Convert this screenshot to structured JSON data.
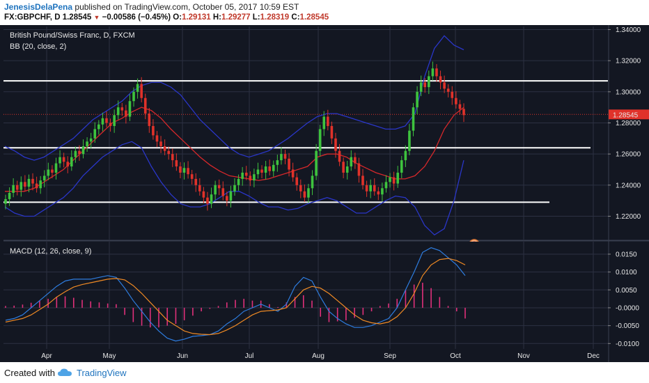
{
  "header": {
    "author": "JenesisDelaPena",
    "published_text": "published on TradingView.com, October 05, 2017 10:59 EST",
    "symbol": "FX:GBPCHF, D",
    "last": "1.28545",
    "change": "−0.00586 (−0.45%)",
    "o_label": "O:",
    "o_value": "1.29131",
    "h_label": "H:",
    "h_value": "1.29277",
    "l_label": "L:",
    "l_value": "1.28319",
    "c_label": "C:",
    "c_value": "1.28545",
    "colors": {
      "author": "#1e73be",
      "negative": "#c0392b"
    }
  },
  "footer": {
    "created_with": "Created with",
    "brand": "TradingView"
  },
  "chart_data": [
    {
      "type": "line",
      "title": "British Pound/Swiss Franc, D, FXCM",
      "subtitle": "BB (20, close, 2)",
      "ylim": [
        1.205,
        1.342
      ],
      "yticks": [
        "1.34000",
        "1.32000",
        "1.30000",
        "1.28000",
        "1.26000",
        "1.24000",
        "1.22000"
      ],
      "ytick_values": [
        1.34,
        1.32,
        1.3,
        1.28,
        1.26,
        1.24,
        1.22
      ],
      "last_price_label": "1.28545",
      "last_price": 1.28545,
      "xticks": [
        "Apr",
        "May",
        "Jun",
        "Jul",
        "Aug",
        "Sep",
        "Oct",
        "Nov",
        "Dec"
      ],
      "candles_close": [
        1.231,
        1.235,
        1.24,
        1.237,
        1.242,
        1.239,
        1.244,
        1.241,
        1.238,
        1.243,
        1.246,
        1.25,
        1.248,
        1.254,
        1.258,
        1.255,
        1.252,
        1.258,
        1.262,
        1.26,
        1.265,
        1.268,
        1.27,
        1.276,
        1.279,
        1.283,
        1.28,
        1.278,
        1.285,
        1.29,
        1.288,
        1.284,
        1.294,
        1.3,
        1.305,
        1.296,
        1.286,
        1.278,
        1.272,
        1.268,
        1.265,
        1.262,
        1.26,
        1.256,
        1.252,
        1.248,
        1.251,
        1.247,
        1.244,
        1.24,
        1.236,
        1.232,
        1.228,
        1.234,
        1.24,
        1.238,
        1.233,
        1.23,
        1.236,
        1.24,
        1.244,
        1.248,
        1.246,
        1.243,
        1.247,
        1.25,
        1.248,
        1.252,
        1.249,
        1.253,
        1.256,
        1.26,
        1.257,
        1.25,
        1.245,
        1.24,
        1.236,
        1.232,
        1.238,
        1.246,
        1.262,
        1.276,
        1.284,
        1.278,
        1.27,
        1.262,
        1.255,
        1.248,
        1.252,
        1.258,
        1.254,
        1.246,
        1.24,
        1.236,
        1.24,
        1.236,
        1.234,
        1.238,
        1.242,
        1.245,
        1.241,
        1.248,
        1.256,
        1.262,
        1.275,
        1.29,
        1.3,
        1.306,
        1.303,
        1.31,
        1.315,
        1.31,
        1.306,
        1.302,
        1.3,
        1.296,
        1.292,
        1.289,
        1.285
      ],
      "bb_upper": [
        1.265,
        1.262,
        1.258,
        1.256,
        1.258,
        1.262,
        1.266,
        1.27,
        1.276,
        1.282,
        1.286,
        1.29,
        1.294,
        1.3,
        1.304,
        1.306,
        1.306,
        1.303,
        1.298,
        1.29,
        1.282,
        1.276,
        1.27,
        1.264,
        1.26,
        1.258,
        1.26,
        1.262,
        1.266,
        1.27,
        1.275,
        1.28,
        1.284,
        1.286,
        1.286,
        1.284,
        1.282,
        1.28,
        1.278,
        1.276,
        1.276,
        1.278,
        1.286,
        1.31,
        1.328,
        1.336,
        1.33,
        1.327
      ],
      "bb_mid": [
        1.236,
        1.236,
        1.236,
        1.238,
        1.242,
        1.246,
        1.25,
        1.256,
        1.262,
        1.268,
        1.274,
        1.28,
        1.283,
        1.287,
        1.29,
        1.288,
        1.283,
        1.276,
        1.27,
        1.264,
        1.258,
        1.253,
        1.249,
        1.246,
        1.245,
        1.244,
        1.243,
        1.244,
        1.246,
        1.248,
        1.25,
        1.252,
        1.258,
        1.26,
        1.26,
        1.258,
        1.254,
        1.251,
        1.248,
        1.246,
        1.244,
        1.244,
        1.246,
        1.252,
        1.262,
        1.276,
        1.285,
        1.29
      ],
      "bb_lower": [
        1.226,
        1.222,
        1.22,
        1.22,
        1.224,
        1.228,
        1.232,
        1.238,
        1.246,
        1.252,
        1.258,
        1.262,
        1.266,
        1.268,
        1.264,
        1.252,
        1.242,
        1.234,
        1.228,
        1.226,
        1.226,
        1.228,
        1.232,
        1.236,
        1.236,
        1.233,
        1.229,
        1.226,
        1.226,
        1.224,
        1.225,
        1.228,
        1.23,
        1.232,
        1.23,
        1.226,
        1.222,
        1.222,
        1.226,
        1.23,
        1.233,
        1.232,
        1.226,
        1.214,
        1.208,
        1.212,
        1.23,
        1.256
      ],
      "hlines": [
        1.307,
        1.264,
        1.229
      ]
    },
    {
      "type": "line",
      "title": "MACD (12, 26, close, 9)",
      "ylim": [
        -0.0115,
        0.0185
      ],
      "yticks": [
        "0.0150",
        "0.0100",
        "0.0050",
        "-0.0000",
        "-0.0050",
        "-0.0100"
      ],
      "ytick_values": [
        0.015,
        0.01,
        0.005,
        0.0,
        -0.005,
        -0.01
      ],
      "macd": [
        -0.0035,
        -0.003,
        -0.002,
        0.0,
        0.002,
        0.004,
        0.006,
        0.0075,
        0.008,
        0.008,
        0.008,
        0.0085,
        0.009,
        0.0085,
        0.0055,
        0.002,
        -0.001,
        -0.004,
        -0.0065,
        -0.0085,
        -0.0093,
        -0.0088,
        -0.008,
        -0.0078,
        -0.0075,
        -0.0065,
        -0.0045,
        -0.003,
        -0.001,
        0.0,
        0.001,
        0.0,
        -0.001,
        0.001,
        0.006,
        0.0085,
        0.0075,
        0.003,
        -0.001,
        -0.003,
        -0.0045,
        -0.0055,
        -0.0055,
        -0.005,
        -0.004,
        -0.003,
        0.0,
        0.005,
        0.01,
        0.0155,
        0.0168,
        0.016,
        0.014,
        0.012,
        0.009
      ],
      "signal": [
        -0.004,
        -0.0035,
        -0.003,
        -0.002,
        -0.0005,
        0.001,
        0.003,
        0.0045,
        0.0058,
        0.0065,
        0.007,
        0.0075,
        0.008,
        0.0082,
        0.0078,
        0.0062,
        0.004,
        0.0015,
        -0.001,
        -0.0035,
        -0.005,
        -0.0065,
        -0.0072,
        -0.0074,
        -0.0075,
        -0.0072,
        -0.0062,
        -0.005,
        -0.0035,
        -0.002,
        -0.001,
        -0.0008,
        -0.0006,
        0.0,
        0.0025,
        0.005,
        0.006,
        0.0055,
        0.004,
        0.002,
        0.0,
        -0.002,
        -0.0035,
        -0.0042,
        -0.0045,
        -0.004,
        -0.0025,
        0.0,
        0.004,
        0.009,
        0.012,
        0.0135,
        0.0138,
        0.0132,
        0.012
      ],
      "histogram": [
        0.0005,
        0.0006,
        0.0009,
        0.0014,
        0.002,
        0.0025,
        0.003,
        0.0032,
        0.0028,
        0.0022,
        0.0018,
        0.0015,
        0.0012,
        0.001,
        -0.002,
        -0.004,
        -0.005,
        -0.0055,
        -0.0055,
        -0.005,
        -0.0045,
        -0.0035,
        -0.0022,
        -0.001,
        -0.0003,
        0.0005,
        0.0015,
        0.0022,
        0.0025,
        0.002,
        0.002,
        0.001,
        0.0002,
        0.0015,
        0.003,
        0.0035,
        0.002,
        -0.0025,
        -0.004,
        -0.0038,
        -0.0035,
        -0.0028,
        -0.002,
        -0.001,
        0.0005,
        0.0012,
        0.0025,
        0.005,
        0.0065,
        0.007,
        0.0055,
        0.003,
        0.0005,
        -0.001,
        -0.003
      ],
      "colors": {
        "macd": "#2e7de0",
        "signal": "#f08a24",
        "histogram": "#e0307a"
      }
    }
  ],
  "theme": {
    "background": "#131722",
    "panel": "#1b1f2b",
    "grid": "#2c3142",
    "candle_up": "#3ec33e",
    "candle_down": "#e0322a",
    "bb_band": "#2a36c8",
    "bb_mid": "#d6282b",
    "hline": "#ffffff",
    "price_tag": "#e0322a"
  }
}
